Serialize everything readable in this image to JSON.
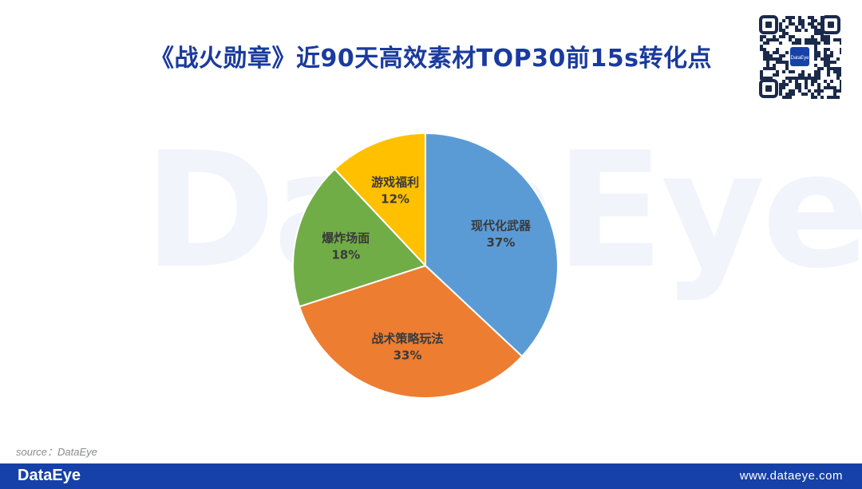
{
  "header": {
    "title": "《战火勋章》近90天高效素材TOP30前15s转化点",
    "watermark": "DataEye"
  },
  "qr": {
    "center_text": "DataEye"
  },
  "chart_data": {
    "type": "pie",
    "title": "《战火勋章》近90天高效素材TOP30前15s转化点",
    "slices": [
      {
        "label": "现代化武器",
        "value": 37,
        "display": "37%",
        "color": "#5b9bd5"
      },
      {
        "label": "战术策略玩法",
        "value": 33,
        "display": "33%",
        "color": "#ed7d31"
      },
      {
        "label": "爆炸场面",
        "value": 18,
        "display": "18%",
        "color": "#70ad47"
      },
      {
        "label": "游戏福利",
        "value": 12,
        "display": "12%",
        "color": "#ffc000"
      }
    ],
    "start_angle_deg": 0,
    "direction": "clockwise",
    "legend": "none"
  },
  "footer": {
    "source": "source：DataEye",
    "logo": "DataEye",
    "url": "www.dataeye.com"
  }
}
